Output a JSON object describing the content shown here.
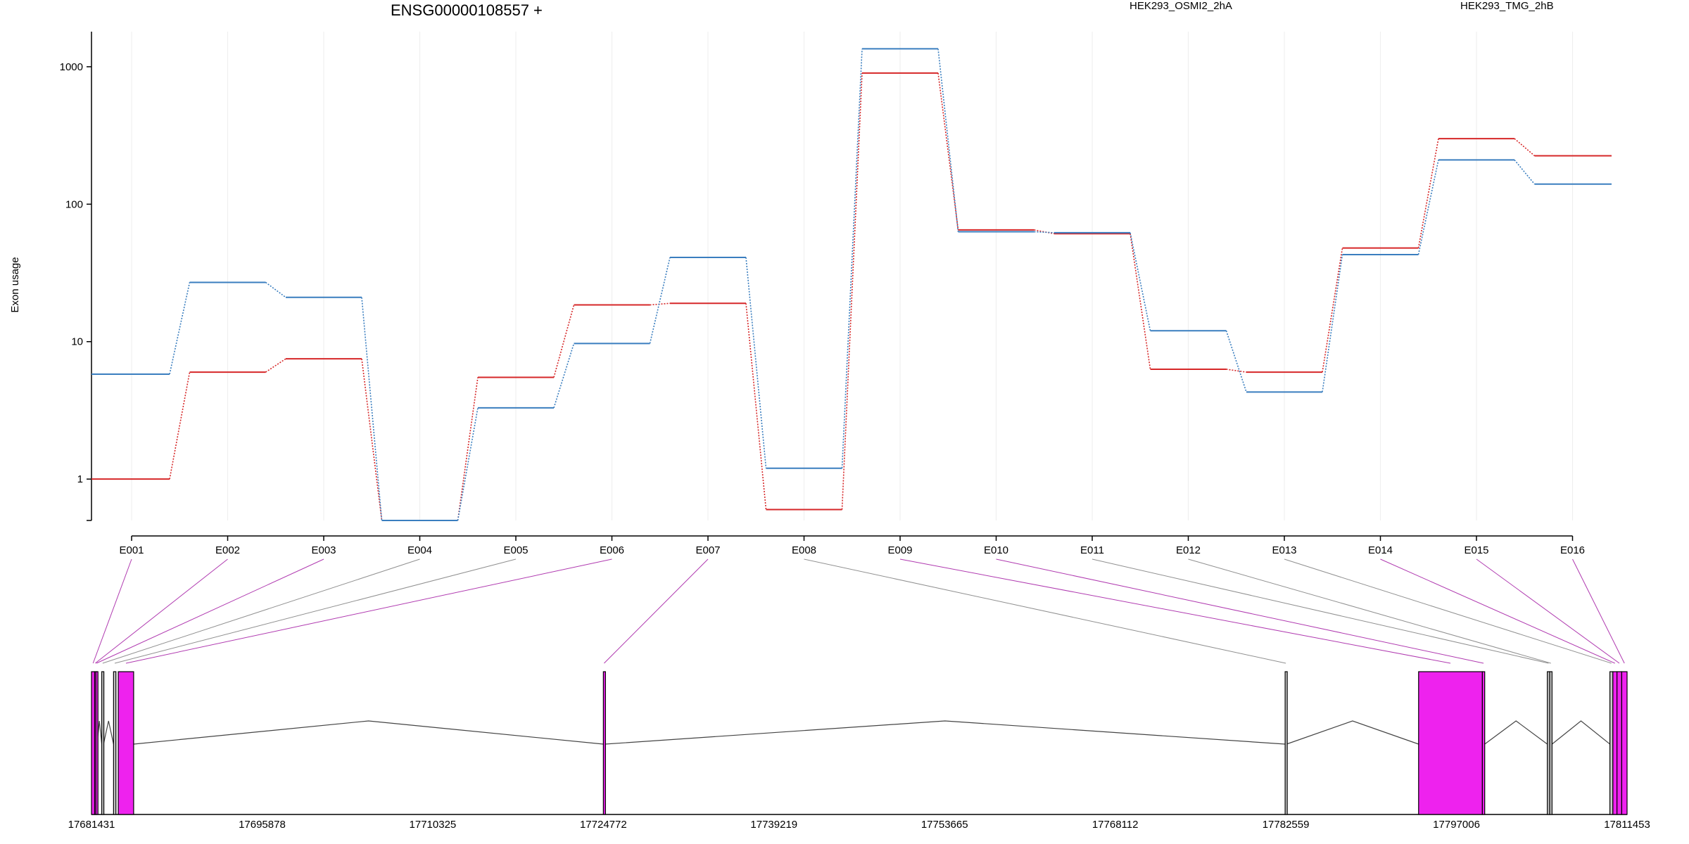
{
  "chart_data": {
    "type": "line",
    "title": "ENSG00000108557 +",
    "ylabel": "Exon usage",
    "xlabel": "",
    "yscale": "log",
    "ylim": [
      0.5,
      1800
    ],
    "yticks": [
      1,
      10,
      100,
      1000
    ],
    "grid": true,
    "legend_placement": "top-right",
    "categories": [
      "E001",
      "E002",
      "E003",
      "E004",
      "E005",
      "E006",
      "E007",
      "E008",
      "E009",
      "E010",
      "E011",
      "E012",
      "E013",
      "E014",
      "E015",
      "E016"
    ],
    "series": [
      {
        "name": "HEK293_OSMI2_2hA",
        "color": "#d62728",
        "values": [
          1,
          6,
          7.5,
          0.5,
          5.5,
          18.5,
          19,
          0.6,
          900,
          65,
          61,
          6.3,
          6,
          48,
          300,
          225
        ]
      },
      {
        "name": "HEK293_TMG_2hB",
        "color": "#3a7ebf",
        "values": [
          5.8,
          27,
          21,
          0.5,
          3.3,
          9.7,
          41,
          1.2,
          1350,
          63,
          62,
          12,
          4.3,
          43,
          210,
          140
        ]
      }
    ],
    "gene_model": {
      "coordinate_ticks": [
        "17681431",
        "17695878",
        "17710325",
        "17724772",
        "17739219",
        "17753665",
        "17768112",
        "17782559",
        "17797006",
        "17811453"
      ],
      "coord_start": 17681431,
      "coord_end": 17811453,
      "highlight_color": "#ee22ee",
      "exons": [
        {
          "id": "E001",
          "start": 17681431,
          "end": 17681700,
          "highlight": true
        },
        {
          "id": "E002",
          "start": 17681700,
          "end": 17681800,
          "highlight": true
        },
        {
          "id": "E003",
          "start": 17681800,
          "end": 17681900,
          "highlight": true
        },
        {
          "id": "E004",
          "start": 17682300,
          "end": 17682450,
          "highlight": false
        },
        {
          "id": "E005",
          "start": 17683300,
          "end": 17683500,
          "highlight": false
        },
        {
          "id": "E006",
          "start": 17683700,
          "end": 17685000,
          "highlight": true
        },
        {
          "id": "E007",
          "start": 17724772,
          "end": 17724900,
          "highlight": true
        },
        {
          "id": "E008",
          "start": 17782500,
          "end": 17782620,
          "highlight": false
        },
        {
          "id": "E009",
          "start": 17793800,
          "end": 17799200,
          "highlight": true
        },
        {
          "id": "E010",
          "start": 17799200,
          "end": 17799400,
          "highlight": true
        },
        {
          "id": "E011",
          "start": 17804700,
          "end": 17804900,
          "highlight": false
        },
        {
          "id": "E012",
          "start": 17804900,
          "end": 17805100,
          "highlight": false
        },
        {
          "id": "E013",
          "start": 17810000,
          "end": 17810250,
          "highlight": false
        },
        {
          "id": "E014",
          "start": 17810250,
          "end": 17810600,
          "highlight": true
        },
        {
          "id": "E015",
          "start": 17810600,
          "end": 17811000,
          "highlight": true
        },
        {
          "id": "E016",
          "start": 17811000,
          "end": 17811453,
          "highlight": true
        }
      ],
      "introns": [
        [
          17681900,
          17682300
        ],
        [
          17682450,
          17683300
        ],
        [
          17685000,
          17724772
        ],
        [
          17724900,
          17782500
        ],
        [
          17782620,
          17793800
        ],
        [
          17799400,
          17804700
        ],
        [
          17805100,
          17810000
        ]
      ]
    }
  }
}
